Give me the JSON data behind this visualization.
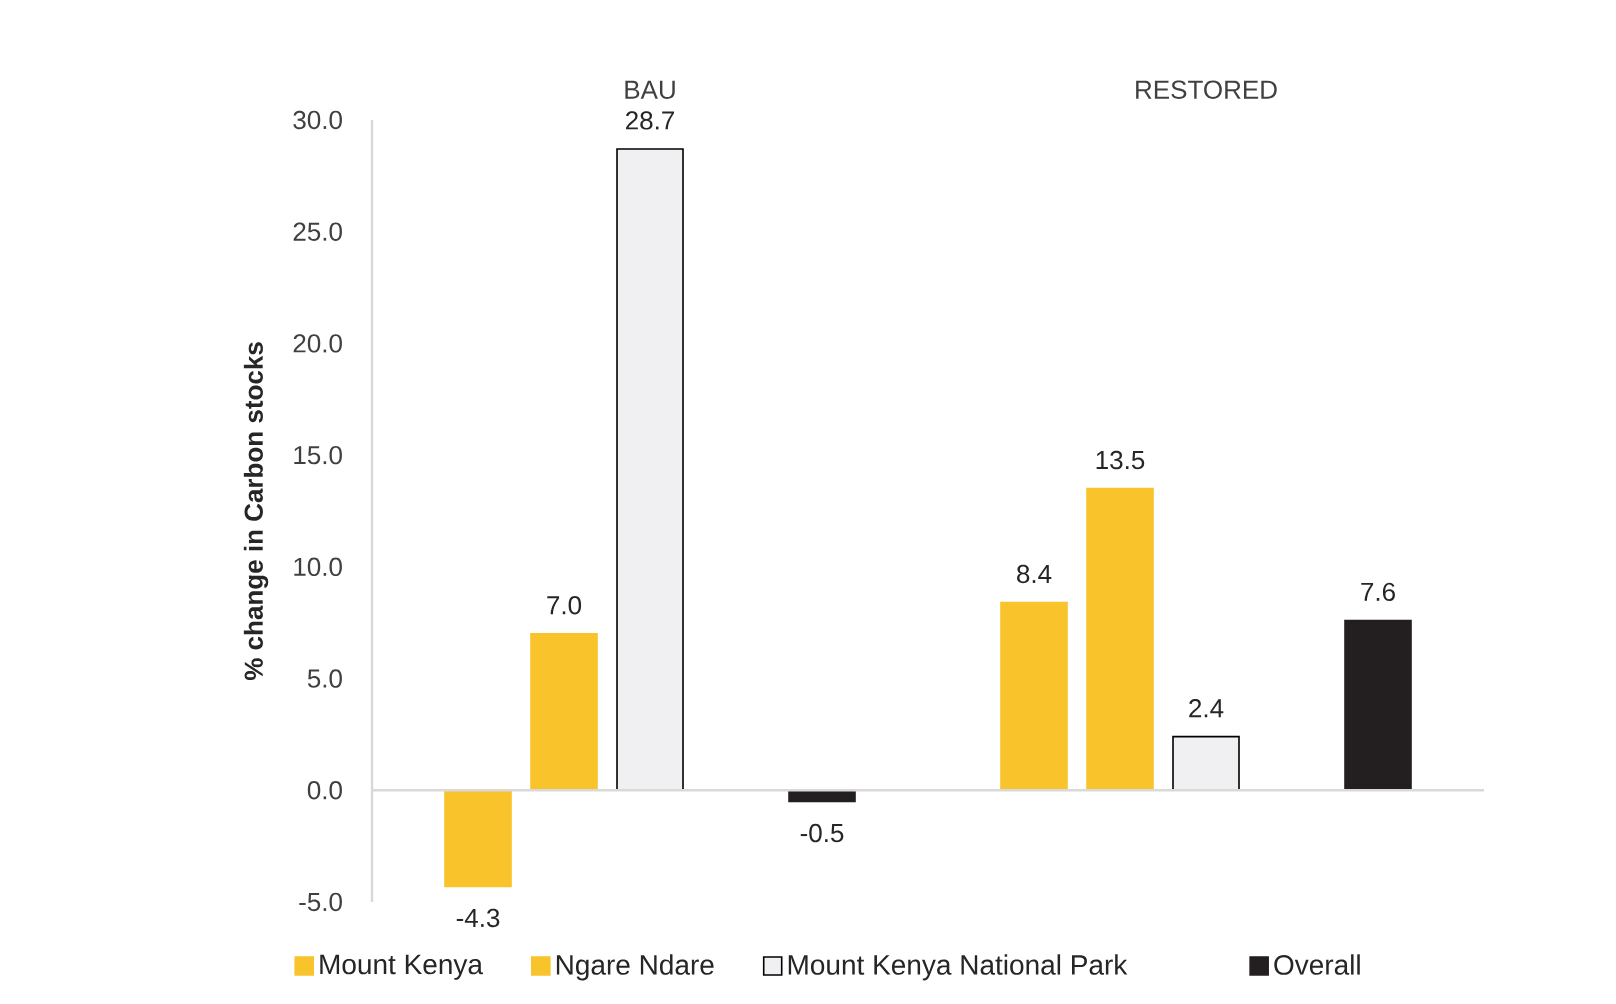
{
  "chart_data": {
    "type": "bar",
    "ylabel": "% change in Carbon stocks",
    "categories": [
      "BAU",
      "RESTORED"
    ],
    "series": [
      {
        "name": "Mount Kenya",
        "color": "#f9c32c",
        "values": [
          -4.3,
          8.4
        ],
        "value_labels": [
          "-4.3",
          "8.4"
        ]
      },
      {
        "name": "Ngare Ndare",
        "color": "#f9c32c",
        "values": [
          7.0,
          13.5
        ],
        "value_labels": [
          "7.0",
          "13.5"
        ]
      },
      {
        "name": "Mount Kenya National Park",
        "color": "#f0f0f2",
        "values": [
          28.7,
          2.4
        ],
        "value_labels": [
          "28.7",
          "2.4"
        ]
      },
      {
        "name": "Overall",
        "color": "#231f20",
        "values": [
          -0.5,
          7.6
        ],
        "value_labels": [
          "-0.5",
          "7.6"
        ]
      }
    ],
    "ylim": [
      -5,
      30
    ],
    "yticks": [
      {
        "value": -5,
        "label": "-5.0"
      },
      {
        "value": 0,
        "label": "0.0"
      },
      {
        "value": 5,
        "label": "5.0"
      },
      {
        "value": 10,
        "label": "10.0"
      },
      {
        "value": 15,
        "label": "15.0"
      },
      {
        "value": 20,
        "label": "20.0"
      },
      {
        "value": 25,
        "label": "25.0"
      },
      {
        "value": 30,
        "label": "30.0"
      }
    ],
    "legend": "bottom"
  }
}
